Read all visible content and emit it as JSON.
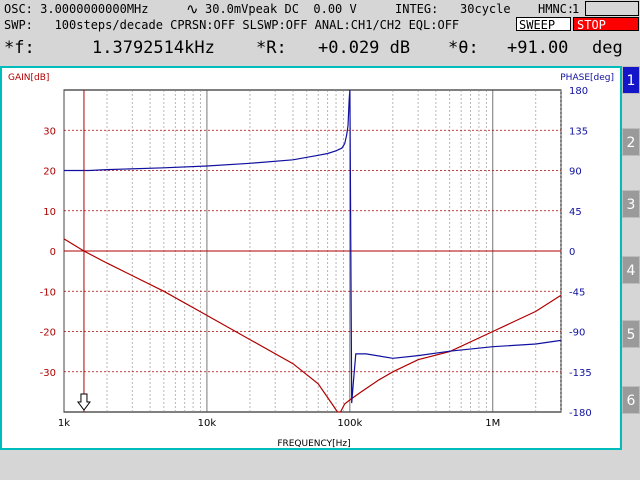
{
  "header": {
    "osc": "OSC: 3.0000000000MHz",
    "tilde": "∿",
    "amp": "30.0mVpeak DC  0.00 V",
    "integ": "INTEG:   30cycle",
    "hmnc": "HMNC:",
    "hmnc_value": "1",
    "swp": "SWP:   100steps/decade CPRSN:OFF SLSWP:OFF ANAL:CH1/CH2 EQL:OFF",
    "sweep_label": "SWEEP",
    "stop_label": "STOP"
  },
  "readout": {
    "f_label": "*f:",
    "f_value": "1.3792514kHz",
    "r_label": "*R:",
    "r_value": "+0.029 dB",
    "theta_label": "*θ:",
    "theta_value": "+91.00",
    "theta_unit": "deg"
  },
  "tabs": [
    "1",
    "2",
    "3",
    "4",
    "5",
    "6"
  ],
  "colors": {
    "gain": "#b00000",
    "phase": "#1010a0",
    "frame": "#00bcbc",
    "stop": "#ff0000",
    "active_tab": "#1414c8"
  },
  "chart_data": {
    "type": "line",
    "xscale": "log",
    "xlim": [
      1000,
      3000000
    ],
    "xlabel": "FREQUENCY[Hz]",
    "x_ticks": [
      "1k",
      "10k",
      "100k",
      "1M"
    ],
    "ylabel_left": "GAIN[dB]",
    "ylabel_right": "PHASE[deg]",
    "ylim_left": [
      -40,
      40
    ],
    "ylim_right": [
      -180,
      180
    ],
    "y_ticks_left": [
      "30",
      "20",
      "10",
      "0",
      "-10",
      "-20",
      "-30"
    ],
    "y_ticks_right": [
      "180",
      "135",
      "90",
      "45",
      "0",
      "-45",
      "-90",
      "-135",
      "-180"
    ],
    "grid": true,
    "marker_x": 1379.25,
    "series": [
      {
        "axis": "left",
        "x": [
          1000,
          1379,
          2000,
          5000,
          10000,
          20000,
          40000,
          60000,
          75000,
          82000,
          86000,
          92000,
          100000,
          120000,
          160000,
          200000,
          300000,
          500000,
          1000000,
          2000000,
          3000000
        ],
        "values": [
          3,
          0,
          -3,
          -10,
          -16,
          -22,
          -28,
          -33,
          -38,
          -41,
          -40,
          -38,
          -37,
          -35,
          -32,
          -30,
          -27,
          -25,
          -20,
          -15,
          -11
        ]
      },
      {
        "axis": "right",
        "x": [
          1000,
          1500,
          2000,
          5000,
          10000,
          20000,
          40000,
          60000,
          70000,
          80000,
          88000,
          92000,
          95000,
          97000,
          98000,
          99000,
          100000,
          103000,
          106000,
          110000,
          130000,
          200000,
          300000,
          500000,
          1000000,
          2000000,
          3000000
        ],
        "values": [
          90,
          90,
          91,
          93,
          95,
          98,
          102,
          107,
          109,
          112,
          115,
          120,
          130,
          140,
          155,
          170,
          180,
          -170,
          -145,
          -115,
          -115,
          -120,
          -117,
          -112,
          -107,
          -104,
          -100
        ]
      }
    ]
  }
}
